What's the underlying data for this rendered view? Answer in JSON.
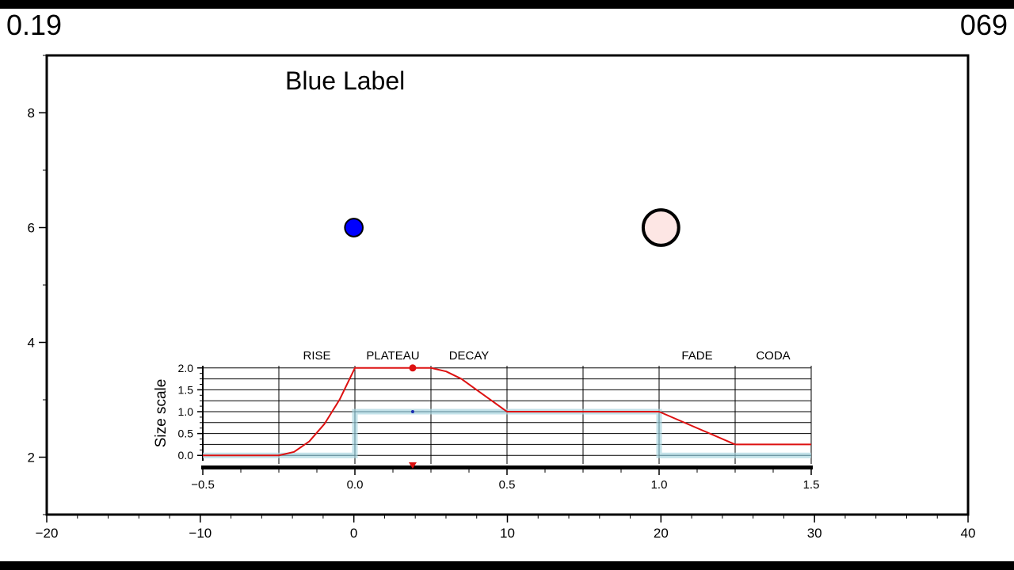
{
  "header": {
    "time_value": "0.19",
    "frame_number": "069"
  },
  "chart_data": [
    {
      "type": "scatter",
      "title": "",
      "annotation": "Blue Label",
      "xlim": [
        -20,
        40
      ],
      "ylim": [
        1,
        9
      ],
      "x_ticks": [
        -20,
        -10,
        0,
        10,
        20,
        30,
        40
      ],
      "x_tick_labels": [
        "−20",
        "−10",
        "0",
        "10",
        "20",
        "30",
        "40"
      ],
      "y_ticks": [
        2,
        4,
        6,
        8
      ],
      "y_tick_labels": [
        "2",
        "4",
        "6",
        "8"
      ],
      "grid": false,
      "points": [
        {
          "x": 0,
          "y": 6,
          "radius": 1.6,
          "fill": "#0000ff",
          "stroke": "#000000"
        },
        {
          "x": 20,
          "y": 6,
          "radius": 3.2,
          "fill": "#fde6e4",
          "stroke": "#000000"
        }
      ]
    },
    {
      "type": "line",
      "ylabel": "Size scale",
      "xlim": [
        -0.5,
        1.5
      ],
      "ylim": [
        -0.05,
        2.05
      ],
      "x_ticks": [
        -0.5,
        0.0,
        0.5,
        1.0,
        1.5
      ],
      "x_tick_labels": [
        "−0.5",
        "0.0",
        "0.5",
        "1.0",
        "1.5"
      ],
      "y_ticks": [
        0.0,
        0.5,
        1.0,
        1.5,
        2.0
      ],
      "y_tick_labels": [
        "0.0",
        "0.5",
        "1.0",
        "1.5",
        "2.0"
      ],
      "grid": true,
      "phases": [
        {
          "label": "RISE",
          "start": -0.25,
          "end": 0.0
        },
        {
          "label": "PLATEAU",
          "start": 0.0,
          "end": 0.25
        },
        {
          "label": "DECAY",
          "start": 0.25,
          "end": 0.5
        },
        {
          "label": "FADE",
          "start": 1.0,
          "end": 1.25
        },
        {
          "label": "CODA",
          "start": 1.25,
          "end": 1.5
        }
      ],
      "current_time": 0.19,
      "series": [
        {
          "color": "#dd1111",
          "x": [
            -0.5,
            -0.25,
            -0.2,
            -0.15,
            -0.1,
            -0.05,
            0.0,
            0.25,
            0.3,
            0.35,
            0.4,
            0.45,
            0.5,
            1.0,
            1.25,
            1.5
          ],
          "y": [
            0.0,
            0.0,
            0.08,
            0.32,
            0.72,
            1.28,
            2.0,
            2.0,
            1.92,
            1.75,
            1.5,
            1.25,
            1.0,
            1.0,
            0.25,
            0.25
          ]
        },
        {
          "color": "#a9d6df",
          "x": [
            -0.5,
            0.0,
            0.0,
            1.0,
            1.0,
            1.5
          ],
          "y": [
            0.0,
            0.0,
            1.0,
            1.0,
            0.0,
            0.0
          ]
        }
      ],
      "markers": [
        {
          "x": 0.19,
          "y": 2.0,
          "color": "#dd1111"
        },
        {
          "x": 0.19,
          "y": 1.0,
          "color": "#1a2bb0"
        }
      ]
    }
  ]
}
